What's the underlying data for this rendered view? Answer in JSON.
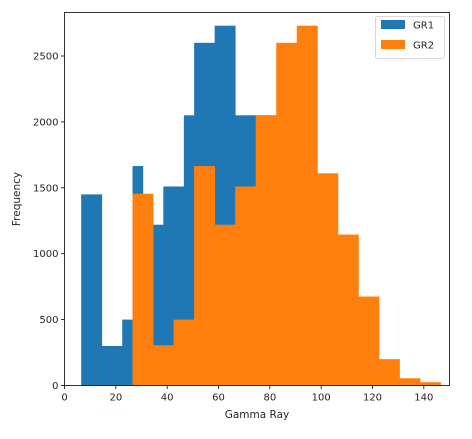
{
  "chart_data": {
    "type": "bar",
    "subtype": "histogram-overlay",
    "xlabel": "Gamma Ray",
    "ylabel": "Frequency",
    "xlim": [
      0,
      150
    ],
    "ylim": [
      0,
      2830
    ],
    "xticks": [
      0,
      20,
      40,
      60,
      80,
      100,
      120,
      140
    ],
    "yticks": [
      0,
      500,
      1000,
      1500,
      2000,
      2500
    ],
    "grid": false,
    "legend_position": "top-right",
    "series": [
      {
        "name": "GR1",
        "color": "#1f77b4",
        "bin_edges": [
          6.5,
          14.5,
          22.5,
          26.5,
          30.5,
          38.5,
          46.5,
          50.5,
          58.5,
          66.5,
          74.5,
          82.5,
          90.5,
          98.5
        ],
        "values": [
          1450,
          300,
          500,
          1665,
          1220,
          1510,
          2050,
          2600,
          2730,
          2050,
          2050,
          2050,
          1500
        ]
      },
      {
        "name": "GR2",
        "color": "#ff7f0e",
        "bin_edges": [
          26.5,
          34.5,
          42.5,
          50.5,
          58.5,
          66.5,
          74.5,
          82.5,
          90.5,
          98.5,
          106.5,
          114.5,
          122.5,
          130.5,
          138.5,
          146.5
        ],
        "values": [
          1455,
          305,
          500,
          1665,
          1220,
          1510,
          2050,
          2600,
          2730,
          1610,
          1145,
          675,
          200,
          55,
          25
        ]
      }
    ]
  }
}
